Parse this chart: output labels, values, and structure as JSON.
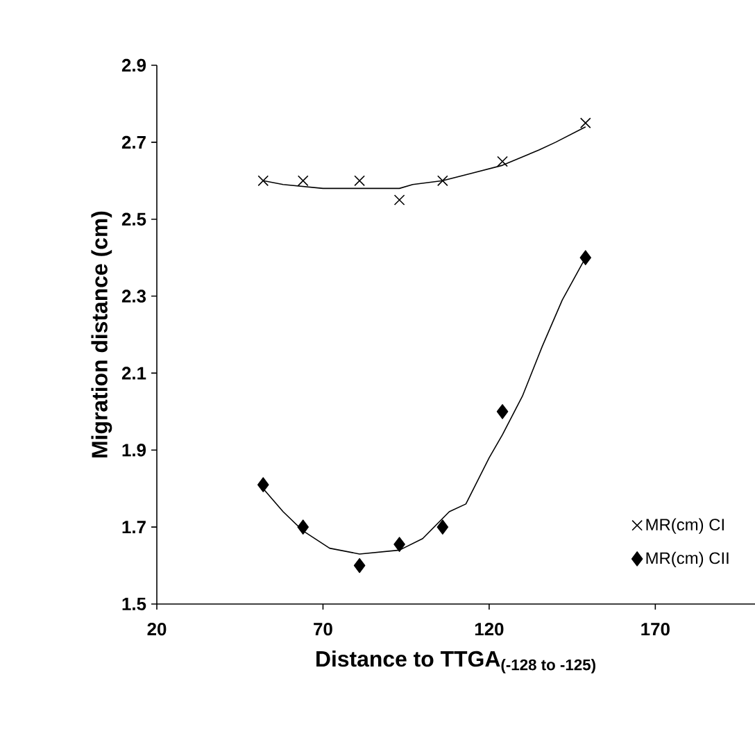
{
  "chart_data": {
    "type": "scatter",
    "xlabel": "Distance to TTGA$_{(-128 to -125)}$",
    "ylabel": "Migration distance (cm)",
    "xlim": [
      20,
      200
    ],
    "ylim": [
      1.5,
      2.9
    ],
    "xticks": [
      20,
      70,
      120,
      170
    ],
    "yticks": [
      1.5,
      1.7,
      1.9,
      2.1,
      2.3,
      2.5,
      2.7,
      2.9
    ],
    "grid": false,
    "legend": "bottom right",
    "series": [
      {
        "name": "MR(cm) CI",
        "marker": "cross",
        "color": "#000000",
        "x": [
          52,
          64,
          81,
          93,
          106,
          124,
          149
        ],
        "values": [
          2.6,
          2.6,
          2.6,
          2.55,
          2.6,
          2.65,
          2.75
        ]
      },
      {
        "name": "MR(cm) CII",
        "marker": "diamond",
        "color": "#000000",
        "x": [
          52,
          64,
          81,
          93,
          106,
          124,
          149
        ],
        "values": [
          1.81,
          1.7,
          1.6,
          1.655,
          1.7,
          2.0,
          2.4
        ]
      },
      {
        "type": "line",
        "marker": "none",
        "color": "#000000",
        "x": [
          52,
          58,
          70,
          81,
          93,
          97,
          106,
          115,
          124,
          135,
          140,
          149
        ],
        "values": [
          2.6,
          2.59,
          2.58,
          2.58,
          2.58,
          2.59,
          2.6,
          2.62,
          2.64,
          2.68,
          2.7,
          2.74
        ]
      },
      {
        "type": "line",
        "marker": "none",
        "color": "#000000",
        "x": [
          52,
          58,
          64,
          72,
          81,
          93,
          100,
          108,
          113,
          120,
          124,
          130,
          136,
          142,
          149
        ],
        "values": [
          1.8,
          1.74,
          1.69,
          1.645,
          1.63,
          1.64,
          1.67,
          1.74,
          1.76,
          1.88,
          1.94,
          2.04,
          2.17,
          2.29,
          2.4
        ]
      }
    ]
  }
}
